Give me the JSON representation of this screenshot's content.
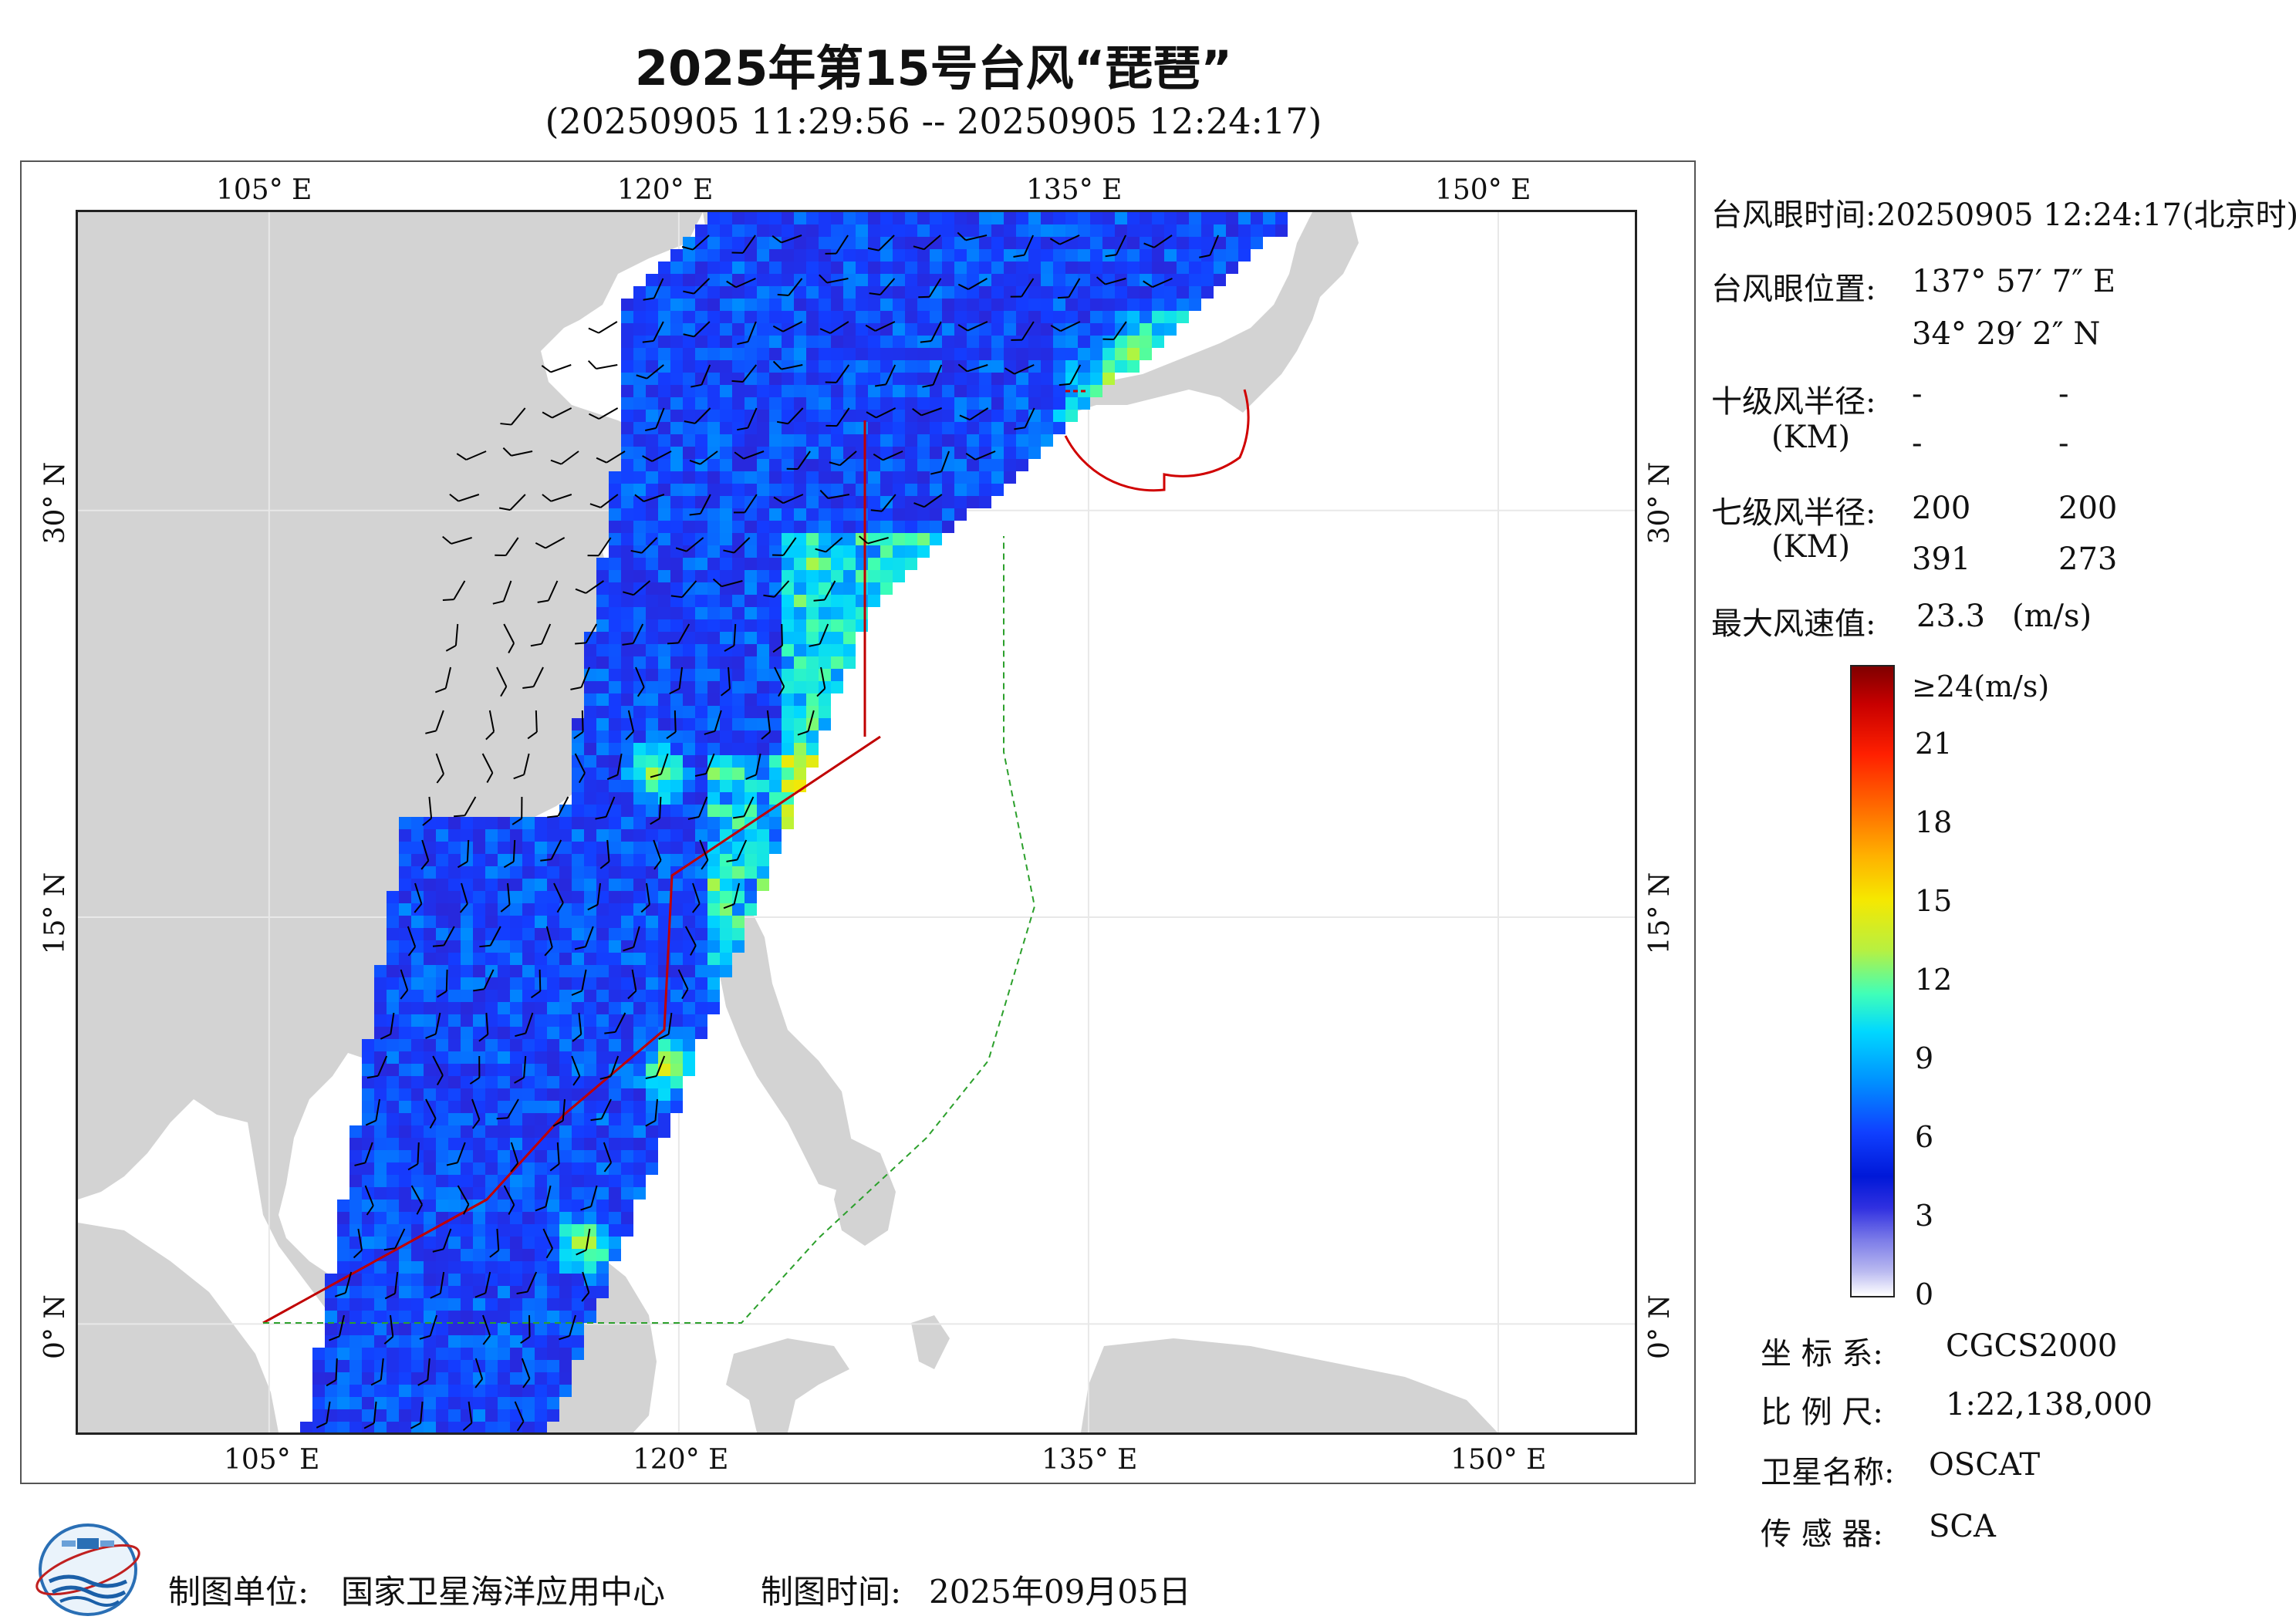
{
  "header": {
    "title": "2025年第15号台风“琵琶”",
    "time_range": "(20250905 11:29:56 -- 20250905 12:24:17)"
  },
  "map": {
    "lon_labels": [
      "105° E",
      "120° E",
      "135° E",
      "150° E"
    ],
    "lat_labels": [
      "30° N",
      "15° N",
      "0° N"
    ],
    "extent": {
      "lon": [
        98,
        155
      ],
      "lat": [
        -4,
        41
      ]
    },
    "colors": {
      "land": "#d3d3d3",
      "ocean": "#ffffff",
      "boundary": "#c00000",
      "swath_edge": "#1e32c8",
      "radius_circle": "#d00000"
    },
    "swath_label": "OSCAT",
    "icons": [
      "wind-barb-icon"
    ]
  },
  "info": {
    "eye_time_label": "台风眼时间:",
    "eye_time_value": "20250905 12:24:17(北京时)",
    "eye_pos_label": "台风眼位置:",
    "eye_lon": "137° 57′ 7″ E",
    "eye_lat": "34° 29′ 2″ N",
    "r10_label": "十级风半径:",
    "r10_unit": "(KM)",
    "r10_values": [
      "-",
      "-",
      "-",
      "-"
    ],
    "r7_label": "七级风半径:",
    "r7_unit": "(KM)",
    "r7_values": [
      "200",
      "200",
      "391",
      "273"
    ],
    "max_label": "最大风速值:",
    "max_value": "23.3",
    "max_unit": "(m/s)"
  },
  "legend": {
    "top_label": "≥24(m/s)",
    "ticks": [
      "21",
      "18",
      "15",
      "12",
      "9",
      "6",
      "3",
      "0"
    ],
    "tick_values": [
      21,
      18,
      15,
      12,
      9,
      6,
      3,
      0
    ],
    "max": 24
  },
  "meta": {
    "crs_label": "坐 标 系:",
    "crs_value": "CGCS2000",
    "scale_label": "比 例 尺:",
    "scale_value": "1:22,138,000",
    "sat_label": "卫星名称:",
    "sat_value": "OSCAT",
    "sensor_label": "传 感 器:",
    "sensor_value": "SCA"
  },
  "footer": {
    "unit_label": "制图单位:",
    "unit_value": "国家卫星海洋应用中心",
    "date_label": "制图时间:",
    "date_value": "2025年09月05日"
  }
}
